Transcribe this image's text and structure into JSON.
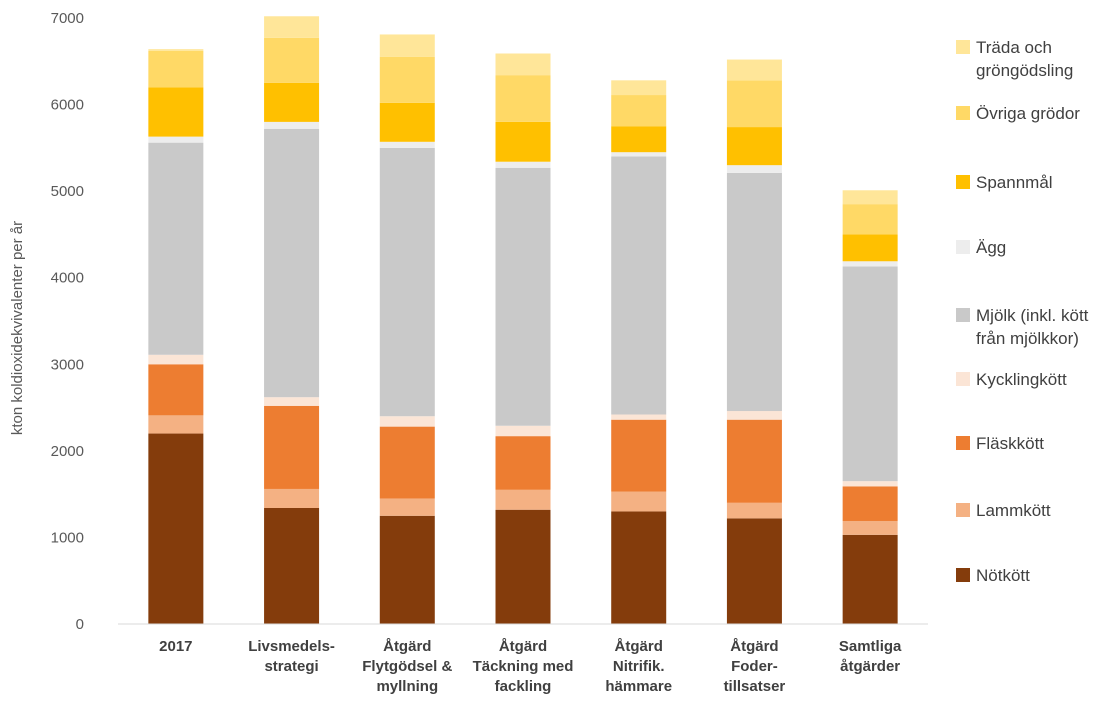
{
  "chart_data": {
    "type": "bar",
    "stacked": true,
    "ylabel": "kton koldioxidekvivalenter per år",
    "ylim": [
      0,
      7000
    ],
    "yticks": [
      0,
      1000,
      2000,
      3000,
      4000,
      5000,
      6000,
      7000
    ],
    "grid": false,
    "legend_position": "right",
    "categories": [
      [
        "2017"
      ],
      [
        "Livsmedels-",
        "strategi"
      ],
      [
        "Åtgärd",
        "Flytgödsel &",
        "myllning"
      ],
      [
        "Åtgärd",
        "Täckning med",
        "fackling"
      ],
      [
        "Åtgärd",
        "Nitrifik.",
        "hämmare"
      ],
      [
        "Åtgärd",
        "Foder-",
        "tillsatser"
      ],
      [
        "Samtliga",
        "åtgärder"
      ]
    ],
    "series": [
      {
        "name": [
          "Nötkött"
        ],
        "color": "#843C0C",
        "values": [
          2200,
          1340,
          1250,
          1320,
          1300,
          1220,
          1030
        ]
      },
      {
        "name": [
          "Lammkött"
        ],
        "color": "#F4B183",
        "values": [
          210,
          220,
          200,
          230,
          230,
          180,
          160
        ]
      },
      {
        "name": [
          "Fläskkött"
        ],
        "color": "#ED7D31",
        "values": [
          590,
          960,
          830,
          620,
          830,
          960,
          400
        ]
      },
      {
        "name": [
          "Kycklingkött"
        ],
        "color": "#FBE5D6",
        "values": [
          110,
          100,
          120,
          120,
          60,
          100,
          60
        ]
      },
      {
        "name": [
          "Mjölk (inkl. kött",
          "från mjölkkor)"
        ],
        "color": "#C9C9C9",
        "values": [
          2450,
          3100,
          3100,
          2980,
          2980,
          2750,
          2480
        ]
      },
      {
        "name": [
          "Ägg"
        ],
        "color": "#EDEDED",
        "values": [
          70,
          80,
          70,
          70,
          50,
          90,
          60
        ]
      },
      {
        "name": [
          "Spannmål"
        ],
        "color": "#FFC000",
        "values": [
          570,
          450,
          450,
          460,
          300,
          440,
          310
        ]
      },
      {
        "name": [
          "Övriga grödor"
        ],
        "color": "#FFD966",
        "values": [
          420,
          520,
          530,
          540,
          360,
          540,
          350
        ]
      },
      {
        "name": [
          "Träda och",
          "gröngödsling"
        ],
        "color": "#FFE699",
        "values": [
          20,
          250,
          260,
          250,
          170,
          240,
          160
        ]
      }
    ]
  }
}
